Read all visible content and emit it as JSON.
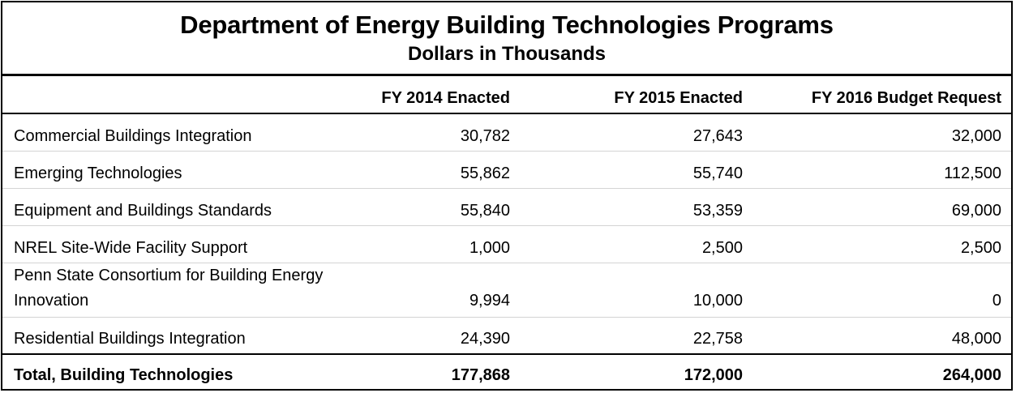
{
  "title": "Department of Energy Building Technologies Programs",
  "subtitle": "Dollars in Thousands",
  "columns": [
    "",
    "FY 2014 Enacted",
    "FY 2015 Enacted",
    "FY 2016 Budget Request"
  ],
  "rows": [
    {
      "label": "Commercial Buildings Integration",
      "fy2014": "30,782",
      "fy2015": "27,643",
      "fy2016": "32,000"
    },
    {
      "label": "Emerging Technologies",
      "fy2014": "55,862",
      "fy2015": "55,740",
      "fy2016": "112,500"
    },
    {
      "label": "Equipment and Buildings Standards",
      "fy2014": "55,840",
      "fy2015": "53,359",
      "fy2016": "69,000"
    },
    {
      "label": "NREL Site-Wide Facility Support",
      "fy2014": "1,000",
      "fy2015": "2,500",
      "fy2016": "2,500"
    },
    {
      "label": "Penn State Consortium for Building Energy Innovation",
      "fy2014": "9,994",
      "fy2015": "10,000",
      "fy2016": "0"
    },
    {
      "label": "Residential Buildings Integration",
      "fy2014": "24,390",
      "fy2015": "22,758",
      "fy2016": "48,000"
    }
  ],
  "total": {
    "label": "Total, Building Technologies",
    "fy2014": "177,868",
    "fy2015": "172,000",
    "fy2016": "264,000"
  }
}
